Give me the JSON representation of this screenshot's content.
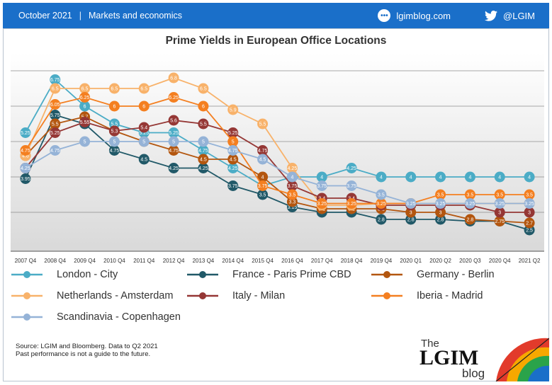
{
  "header": {
    "date": "October 2021",
    "separator": "|",
    "section": "Markets and economics",
    "blog": "lgimblog.com",
    "twitter": "@LGIM"
  },
  "footer": {
    "source": "Source: LGIM and Bloomberg. Data to Q2 2021",
    "disclaimer": "Past performance is not a guide to the future."
  },
  "logo": {
    "the": "The",
    "lgim": "LGIM",
    "blog": "blog"
  },
  "chart_data": {
    "type": "line",
    "title": "Prime Yields in European Office Locations",
    "categories": [
      "2007 Q4",
      "2008 Q4",
      "2009 Q4",
      "2010 Q4",
      "2011 Q4",
      "2012 Q4",
      "2013 Q4",
      "2014 Q4",
      "2015 Q4",
      "2016 Q4",
      "2017 Q4",
      "2018 Q4",
      "2019 Q4",
      "2020 Q1",
      "2020 Q2",
      "2020 Q3",
      "2020 Q4",
      "2021 Q2"
    ],
    "ylim": [
      1.9,
      7.5
    ],
    "gridlines": [
      3,
      4,
      5,
      6,
      7
    ],
    "legend_position": "bottom",
    "series": [
      {
        "name": "London - City",
        "color": "#4bacc6",
        "values": [
          5.25,
          6.75,
          6,
          5.5,
          5.25,
          5.25,
          4.75,
          4.25,
          3.75,
          4,
          4,
          4.25,
          4,
          4,
          4,
          4,
          4,
          4
        ]
      },
      {
        "name": "France - Paris Prime CBD",
        "color": "#215968",
        "values": [
          3.95,
          5.75,
          5.5,
          4.75,
          4.5,
          4.25,
          4.25,
          3.75,
          3.5,
          3.15,
          3,
          3,
          2.8,
          2.8,
          2.8,
          2.75,
          2.75,
          2.5
        ]
      },
      {
        "name": "Germany - Berlin",
        "color": "#b3560f",
        "values": [
          4.6,
          5.5,
          5.7,
          5.3,
          5,
          4.75,
          4.5,
          4.5,
          4,
          3.3,
          3.1,
          3.1,
          3.1,
          3,
          3,
          2.8,
          2.75,
          2.7
        ]
      },
      {
        "name": "Netherlands - Amsterdam",
        "color": "#f8b26a",
        "values": [
          4.6,
          6.5,
          6.5,
          6.5,
          6.5,
          6.8,
          6.5,
          5.9,
          5.5,
          4.25,
          3.2,
          3.2,
          3.25,
          3.25,
          3.25,
          3.25,
          3.25,
          3.25
        ]
      },
      {
        "name": "Italy - Milan",
        "color": "#953735",
        "values": [
          4.25,
          5.25,
          5.55,
          5.3,
          5.4,
          5.6,
          5.5,
          5.25,
          4.75,
          3.75,
          3.4,
          3.4,
          3.2,
          3.2,
          3.2,
          3.2,
          3,
          3
        ]
      },
      {
        "name": "Iberia - Madrid",
        "color": "#f47f20",
        "values": [
          4.75,
          6.05,
          6.25,
          6,
          6,
          6.25,
          6,
          5,
          3.75,
          3.5,
          3.25,
          3.25,
          3.25,
          3.25,
          3.5,
          3.5,
          3.5,
          3.5
        ]
      },
      {
        "name": "Scandinavia - Copenhagen",
        "color": "#95b3d7",
        "values": [
          4.25,
          4.75,
          5,
          5,
          5,
          5,
          5,
          4.75,
          4.5,
          4,
          3.75,
          3.75,
          3.5,
          3.25,
          3.25,
          3.25,
          3.25,
          3.25
        ]
      }
    ]
  }
}
